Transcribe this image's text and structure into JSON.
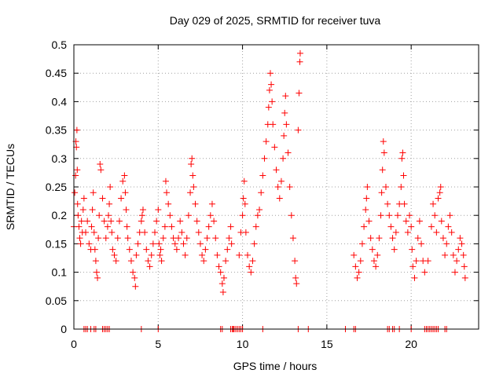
{
  "chart_data": {
    "type": "scatter",
    "title": "Day 029 of 2025, SRMTID for receiver tuva",
    "xlabel": "GPS time / hours",
    "ylabel": "SRMTID / TECUs",
    "xlim": [
      0,
      24
    ],
    "ylim": [
      0,
      0.5
    ],
    "x_ticks": [
      "0",
      "5",
      "10",
      "15",
      "20"
    ],
    "x_tick_values": [
      0,
      5,
      10,
      15,
      20
    ],
    "y_ticks": [
      "0",
      "0.05",
      "0.1",
      "0.15",
      "0.2",
      "0.25",
      "0.3",
      "0.35",
      "0.4",
      "0.45",
      "0.5"
    ],
    "y_tick_values": [
      0,
      0.05,
      0.1,
      0.15,
      0.2,
      0.25,
      0.3,
      0.35,
      0.4,
      0.45,
      0.5
    ],
    "grid": true,
    "marker": "+",
    "color": "#ff0000",
    "series": [
      {
        "values": [
          [
            0.0,
            0.18
          ],
          [
            0.05,
            0.24
          ],
          [
            0.1,
            0.27
          ],
          [
            0.12,
            0.33
          ],
          [
            0.15,
            0.32
          ],
          [
            0.18,
            0.35
          ],
          [
            0.2,
            0.28
          ],
          [
            0.22,
            0.22
          ],
          [
            0.25,
            0.2
          ],
          [
            0.3,
            0.18
          ],
          [
            0.35,
            0.16
          ],
          [
            0.4,
            0.15
          ],
          [
            0.45,
            0.19
          ],
          [
            0.5,
            0.17
          ],
          [
            0.55,
            0.21
          ],
          [
            0.6,
            0.23
          ],
          [
            0.7,
            0.17
          ],
          [
            0.8,
            0.19
          ],
          [
            0.9,
            0.15
          ],
          [
            1.0,
            0.14
          ],
          [
            1.05,
            0.18
          ],
          [
            1.1,
            0.21
          ],
          [
            1.15,
            0.24
          ],
          [
            1.2,
            0.17
          ],
          [
            1.25,
            0.14
          ],
          [
            1.3,
            0.12
          ],
          [
            1.35,
            0.1
          ],
          [
            1.4,
            0.09
          ],
          [
            1.45,
            0.16
          ],
          [
            1.5,
            0.2
          ],
          [
            1.55,
            0.29
          ],
          [
            1.6,
            0.28
          ],
          [
            1.7,
            0.23
          ],
          [
            1.8,
            0.19
          ],
          [
            1.9,
            0.16
          ],
          [
            2.0,
            0.18
          ],
          [
            2.05,
            0.2
          ],
          [
            2.1,
            0.22
          ],
          [
            2.15,
            0.25
          ],
          [
            2.2,
            0.19
          ],
          [
            2.25,
            0.17
          ],
          [
            2.3,
            0.14
          ],
          [
            2.4,
            0.13
          ],
          [
            2.5,
            0.12
          ],
          [
            2.6,
            0.16
          ],
          [
            2.7,
            0.19
          ],
          [
            2.8,
            0.23
          ],
          [
            2.9,
            0.26
          ],
          [
            3.0,
            0.27
          ],
          [
            3.05,
            0.24
          ],
          [
            3.1,
            0.21
          ],
          [
            3.15,
            0.18
          ],
          [
            3.2,
            0.16
          ],
          [
            3.3,
            0.14
          ],
          [
            3.4,
            0.12
          ],
          [
            3.5,
            0.1
          ],
          [
            3.6,
            0.09
          ],
          [
            3.65,
            0.075
          ],
          [
            3.7,
            0.13
          ],
          [
            3.8,
            0.15
          ],
          [
            3.9,
            0.17
          ],
          [
            4.0,
            0.19
          ],
          [
            4.05,
            0.2
          ],
          [
            4.1,
            0.21
          ],
          [
            4.2,
            0.17
          ],
          [
            4.3,
            0.14
          ],
          [
            4.4,
            0.12
          ],
          [
            4.5,
            0.11
          ],
          [
            4.6,
            0.13
          ],
          [
            4.7,
            0.15
          ],
          [
            4.8,
            0.17
          ],
          [
            4.9,
            0.19
          ],
          [
            5.0,
            0.21
          ],
          [
            5.05,
            0.15
          ],
          [
            5.1,
            0.13
          ],
          [
            5.15,
            0.14
          ],
          [
            5.2,
            0.12
          ],
          [
            5.3,
            0.16
          ],
          [
            5.4,
            0.18
          ],
          [
            5.45,
            0.26
          ],
          [
            5.5,
            0.24
          ],
          [
            5.6,
            0.22
          ],
          [
            5.7,
            0.2
          ],
          [
            5.8,
            0.18
          ],
          [
            5.9,
            0.16
          ],
          [
            6.0,
            0.15
          ],
          [
            6.1,
            0.14
          ],
          [
            6.2,
            0.16
          ],
          [
            6.3,
            0.19
          ],
          [
            6.4,
            0.17
          ],
          [
            6.5,
            0.15
          ],
          [
            6.6,
            0.13
          ],
          [
            6.7,
            0.16
          ],
          [
            6.8,
            0.2
          ],
          [
            6.9,
            0.24
          ],
          [
            6.95,
            0.29
          ],
          [
            7.0,
            0.3
          ],
          [
            7.05,
            0.27
          ],
          [
            7.1,
            0.25
          ],
          [
            7.2,
            0.22
          ],
          [
            7.3,
            0.19
          ],
          [
            7.4,
            0.17
          ],
          [
            7.5,
            0.15
          ],
          [
            7.6,
            0.13
          ],
          [
            7.7,
            0.12
          ],
          [
            7.8,
            0.14
          ],
          [
            7.9,
            0.16
          ],
          [
            8.0,
            0.18
          ],
          [
            8.1,
            0.2
          ],
          [
            8.2,
            0.22
          ],
          [
            8.3,
            0.19
          ],
          [
            8.4,
            0.16
          ],
          [
            8.5,
            0.13
          ],
          [
            8.6,
            0.11
          ],
          [
            8.7,
            0.1
          ],
          [
            8.8,
            0.08
          ],
          [
            8.85,
            0.065
          ],
          [
            8.9,
            0.09
          ],
          [
            9.0,
            0.12
          ],
          [
            9.1,
            0.14
          ],
          [
            9.2,
            0.16
          ],
          [
            9.3,
            0.18
          ],
          [
            9.35,
            0.15
          ],
          [
            9.8,
            0.13
          ],
          [
            9.9,
            0.17
          ],
          [
            10.0,
            0.2
          ],
          [
            10.05,
            0.23
          ],
          [
            10.1,
            0.26
          ],
          [
            10.15,
            0.22
          ],
          [
            10.2,
            0.17
          ],
          [
            10.3,
            0.13
          ],
          [
            10.4,
            0.11
          ],
          [
            10.5,
            0.1
          ],
          [
            10.6,
            0.12
          ],
          [
            10.7,
            0.15
          ],
          [
            10.8,
            0.18
          ],
          [
            10.9,
            0.2
          ],
          [
            11.0,
            0.21
          ],
          [
            11.1,
            0.24
          ],
          [
            11.2,
            0.27
          ],
          [
            11.3,
            0.3
          ],
          [
            11.4,
            0.33
          ],
          [
            11.5,
            0.36
          ],
          [
            11.55,
            0.39
          ],
          [
            11.6,
            0.42
          ],
          [
            11.65,
            0.45
          ],
          [
            11.7,
            0.43
          ],
          [
            11.75,
            0.4
          ],
          [
            11.8,
            0.36
          ],
          [
            11.9,
            0.32
          ],
          [
            12.0,
            0.28
          ],
          [
            12.1,
            0.25
          ],
          [
            12.2,
            0.23
          ],
          [
            12.3,
            0.26
          ],
          [
            12.4,
            0.3
          ],
          [
            12.45,
            0.34
          ],
          [
            12.5,
            0.38
          ],
          [
            12.55,
            0.41
          ],
          [
            12.6,
            0.36
          ],
          [
            12.7,
            0.31
          ],
          [
            12.8,
            0.25
          ],
          [
            12.9,
            0.2
          ],
          [
            13.0,
            0.16
          ],
          [
            13.1,
            0.12
          ],
          [
            13.15,
            0.09
          ],
          [
            13.2,
            0.08
          ],
          [
            13.3,
            0.35
          ],
          [
            13.35,
            0.415
          ],
          [
            13.4,
            0.47
          ],
          [
            13.42,
            0.485
          ],
          [
            16.6,
            0.13
          ],
          [
            16.7,
            0.11
          ],
          [
            16.8,
            0.09
          ],
          [
            16.9,
            0.1
          ],
          [
            17.0,
            0.12
          ],
          [
            17.1,
            0.15
          ],
          [
            17.2,
            0.18
          ],
          [
            17.3,
            0.21
          ],
          [
            17.35,
            0.23
          ],
          [
            17.4,
            0.25
          ],
          [
            17.5,
            0.19
          ],
          [
            17.6,
            0.16
          ],
          [
            17.7,
            0.14
          ],
          [
            17.8,
            0.12
          ],
          [
            17.9,
            0.11
          ],
          [
            18.0,
            0.13
          ],
          [
            18.1,
            0.16
          ],
          [
            18.2,
            0.2
          ],
          [
            18.25,
            0.24
          ],
          [
            18.3,
            0.28
          ],
          [
            18.35,
            0.33
          ],
          [
            18.4,
            0.31
          ],
          [
            18.5,
            0.25
          ],
          [
            18.6,
            0.22
          ],
          [
            18.7,
            0.2
          ],
          [
            18.8,
            0.18
          ],
          [
            18.9,
            0.16
          ],
          [
            19.0,
            0.14
          ],
          [
            19.1,
            0.17
          ],
          [
            19.2,
            0.2
          ],
          [
            19.3,
            0.22
          ],
          [
            19.4,
            0.25
          ],
          [
            19.45,
            0.3
          ],
          [
            19.5,
            0.31
          ],
          [
            19.55,
            0.27
          ],
          [
            19.6,
            0.22
          ],
          [
            19.7,
            0.19
          ],
          [
            19.8,
            0.17
          ],
          [
            19.9,
            0.2
          ],
          [
            20.0,
            0.18
          ],
          [
            20.05,
            0.14
          ],
          [
            20.1,
            0.11
          ],
          [
            20.2,
            0.09
          ],
          [
            20.3,
            0.12
          ],
          [
            20.4,
            0.16
          ],
          [
            20.5,
            0.19
          ],
          [
            20.6,
            0.15
          ],
          [
            20.7,
            0.12
          ],
          [
            20.8,
            0.1
          ],
          [
            21.0,
            0.12
          ],
          [
            21.2,
            0.18
          ],
          [
            21.3,
            0.22
          ],
          [
            21.4,
            0.2
          ],
          [
            21.5,
            0.17
          ],
          [
            21.6,
            0.23
          ],
          [
            21.7,
            0.24
          ],
          [
            21.75,
            0.25
          ],
          [
            21.8,
            0.19
          ],
          [
            21.9,
            0.16
          ],
          [
            22.0,
            0.13
          ],
          [
            22.1,
            0.15
          ],
          [
            22.2,
            0.18
          ],
          [
            22.3,
            0.2
          ],
          [
            22.4,
            0.17
          ],
          [
            22.5,
            0.13
          ],
          [
            22.6,
            0.1
          ],
          [
            22.7,
            0.12
          ],
          [
            22.8,
            0.14
          ],
          [
            22.9,
            0.16
          ],
          [
            23.0,
            0.15
          ],
          [
            23.1,
            0.13
          ],
          [
            23.15,
            0.11
          ],
          [
            23.2,
            0.09
          ]
        ]
      },
      {
        "values": [
          [
            0.6,
            0
          ],
          [
            0.7,
            0
          ],
          [
            0.8,
            0
          ],
          [
            1.0,
            0
          ],
          [
            1.2,
            0
          ],
          [
            1.3,
            0
          ],
          [
            1.7,
            0
          ],
          [
            1.8,
            0
          ],
          [
            1.9,
            0
          ],
          [
            2.0,
            0
          ],
          [
            2.1,
            0
          ],
          [
            4.0,
            0
          ],
          [
            5.0,
            0
          ],
          [
            8.7,
            0
          ],
          [
            8.8,
            0
          ],
          [
            9.3,
            0
          ],
          [
            9.4,
            0
          ],
          [
            9.45,
            0
          ],
          [
            9.5,
            0
          ],
          [
            9.6,
            0
          ],
          [
            9.7,
            0
          ],
          [
            9.8,
            0
          ],
          [
            9.9,
            0
          ],
          [
            10.0,
            0
          ],
          [
            11.2,
            0
          ],
          [
            13.3,
            0
          ],
          [
            13.9,
            0
          ],
          [
            16.1,
            0
          ],
          [
            16.6,
            0
          ],
          [
            16.7,
            0
          ],
          [
            18.6,
            0
          ],
          [
            18.7,
            0
          ],
          [
            18.9,
            0
          ],
          [
            19.0,
            0
          ],
          [
            19.3,
            0
          ],
          [
            20.0,
            0
          ],
          [
            20.8,
            0
          ],
          [
            20.9,
            0
          ],
          [
            21.0,
            0
          ],
          [
            21.1,
            0
          ],
          [
            21.2,
            0
          ],
          [
            21.3,
            0
          ],
          [
            21.4,
            0
          ],
          [
            21.5,
            0
          ],
          [
            21.6,
            0
          ],
          [
            22.0,
            0
          ],
          [
            22.1,
            0
          ]
        ]
      }
    ]
  }
}
